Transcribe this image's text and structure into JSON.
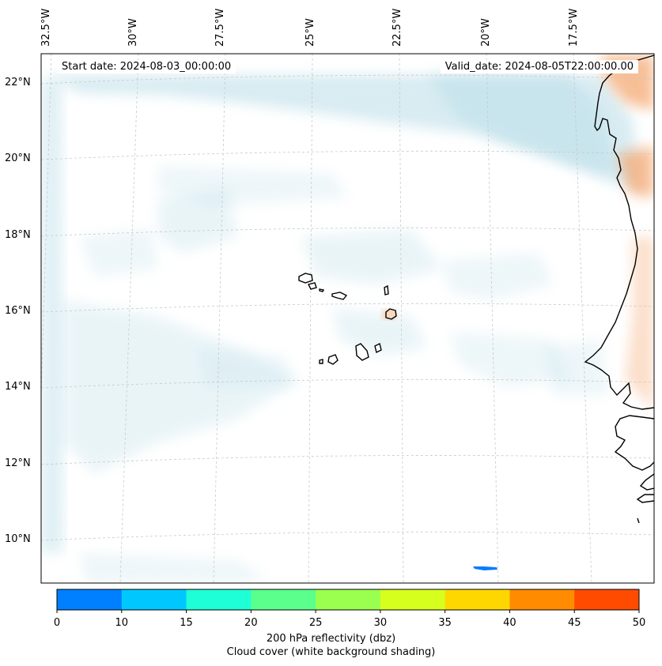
{
  "map": {
    "start_label": "Start date: 2024-08-03_00:00:00",
    "valid_label": "Valid_date: 2024-08-05T22:00:00.00",
    "lon_ticks": [
      "32.5°W",
      "30°W",
      "27.5°W",
      "25°W",
      "22.5°W",
      "20°W",
      "17.5°W"
    ],
    "lat_ticks": [
      "22°N",
      "20°N",
      "18°N",
      "16°N",
      "14°N",
      "12°N",
      "10°N"
    ],
    "region": "Cape Verde islands and West African coast"
  },
  "colorbar": {
    "ticks": [
      "0",
      "10",
      "15",
      "20",
      "25",
      "30",
      "35",
      "40",
      "45",
      "50"
    ],
    "colors": [
      "#007fff",
      "#00c8ff",
      "#1effd7",
      "#5aff8c",
      "#9bff50",
      "#d7ff1e",
      "#ffd700",
      "#ff8c00",
      "#ff4b00"
    ],
    "label": "200 hPa reflectivity (dbz)",
    "sublabel": "Cloud cover (white background shading)"
  },
  "colors": {
    "cloud": "#b9dde8",
    "warm": "#f4a46a",
    "rain": "#0a7cff",
    "coast": "#000000"
  }
}
